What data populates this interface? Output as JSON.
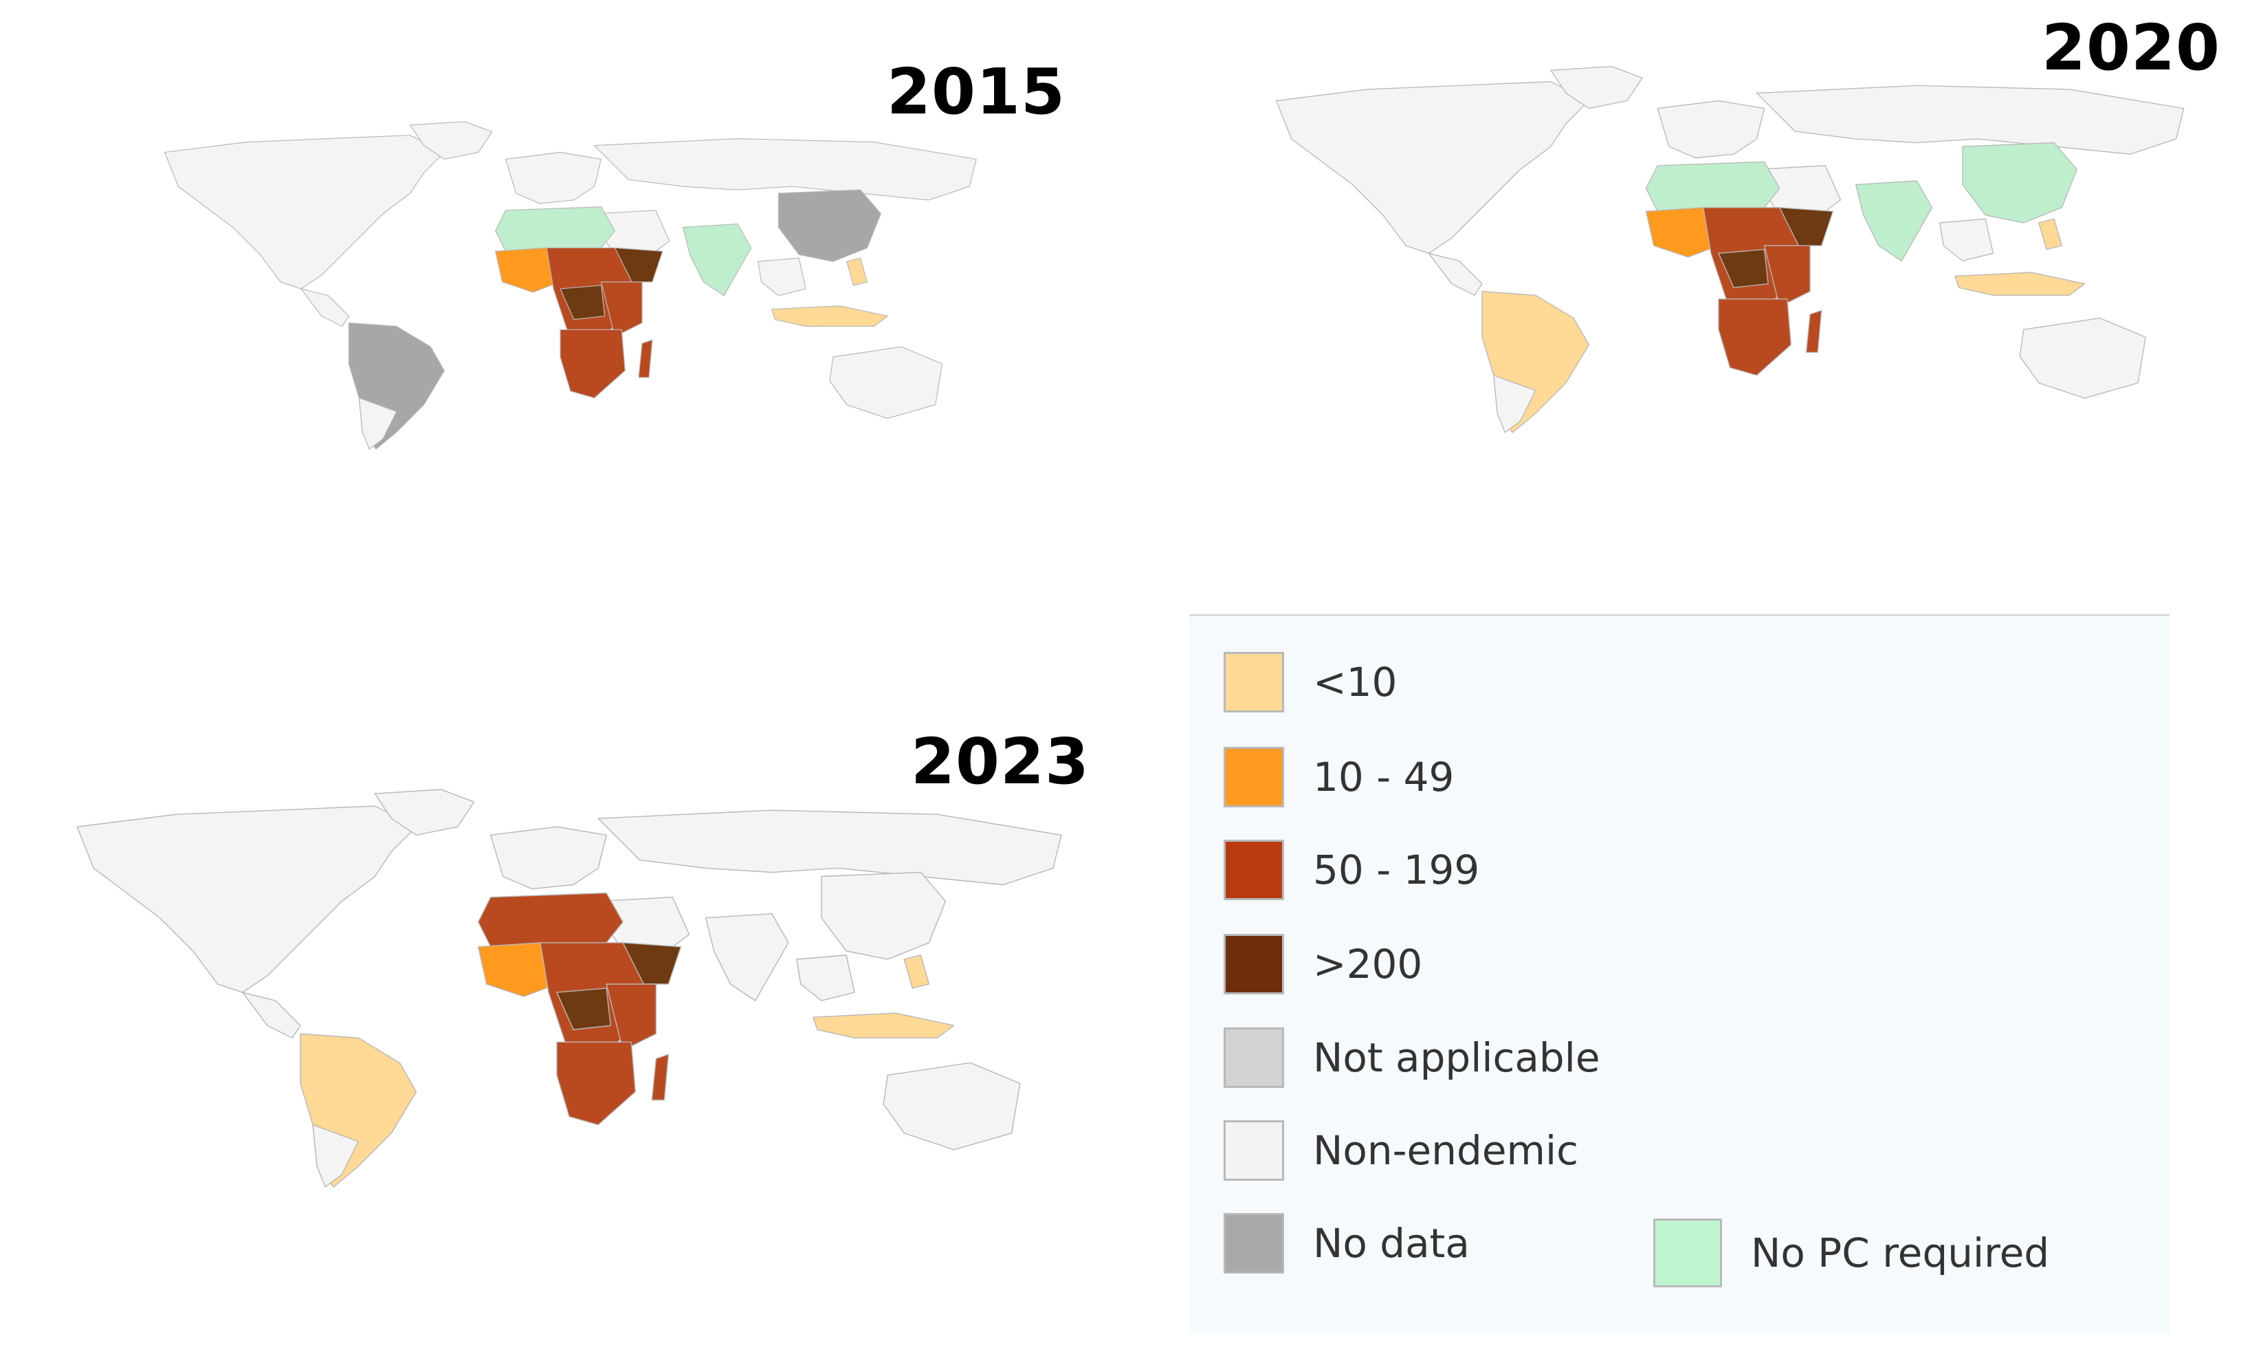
{
  "maps": [
    {
      "year": "2015",
      "colors": {
        "land": "#f4f4f4",
        "africa_main": "#b94a20",
        "africa_dark": "#6e3a12",
        "africa_light": "#ff9a1e",
        "sahel": "#bfeecd",
        "no_data": "#a7a7a7",
        "asia": "#a7a7a7",
        "india": "#bfeecd",
        "americas": "#a7a7a7",
        "sea_islands": "#ffd995"
      }
    },
    {
      "year": "2020",
      "colors": {
        "land": "#f4f4f4",
        "africa_main": "#b94a20",
        "africa_dark": "#6e3a12",
        "africa_light": "#ff9a1e",
        "sahel": "#bfeecd",
        "no_data": "#a7a7a7",
        "asia": "#bfeecd",
        "india": "#bfeecd",
        "americas": "#ffd995",
        "sea_islands": "#ffd995"
      }
    },
    {
      "year": "2023",
      "colors": {
        "land": "#f4f4f4",
        "africa_main": "#b94a20",
        "africa_dark": "#6e3a12",
        "africa_light": "#ff9a1e",
        "sahel": "#b94a20",
        "no_data": "#a7a7a7",
        "asia": "#f4f4f4",
        "india": "#f4f4f4",
        "americas": "#ffd995",
        "sea_islands": "#ffd995"
      }
    }
  ],
  "legend": {
    "items": [
      {
        "label": "<10",
        "color": "#ffd995"
      },
      {
        "label": "10 - 49",
        "color": "#ff9a1e"
      },
      {
        "label": "50 - 199",
        "color": "#b83a10"
      },
      {
        "label": ">200",
        "color": "#6e2e0a"
      },
      {
        "label": "Not applicable",
        "color": "#d2d2d2"
      },
      {
        "label": "Non-endemic",
        "color": "#f3f3f3"
      },
      {
        "label": "No data",
        "color": "#a9a9a9"
      },
      {
        "label": "No PC required",
        "color": "#bff5d0"
      }
    ]
  }
}
